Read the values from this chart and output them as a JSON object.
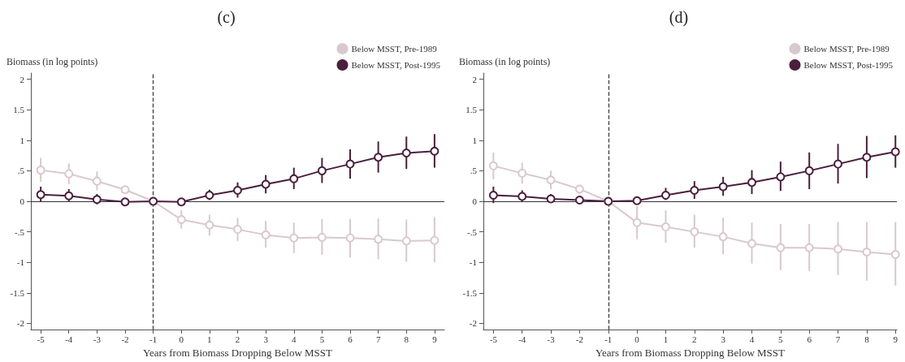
{
  "chart_data": [
    {
      "type": "line",
      "title": "(c)",
      "xlabel": "Years from Biomass Dropping Below MSST",
      "ylabel": "Biomass (in log points)",
      "x": [
        -5,
        -4,
        -3,
        -2,
        -1,
        0,
        1,
        2,
        3,
        4,
        5,
        6,
        7,
        8,
        9
      ],
      "series": [
        {
          "name": "Below MSST, Pre-1989",
          "color": "#d9c8cf",
          "values": [
            0.51,
            0.45,
            0.33,
            0.19,
            0,
            -0.3,
            -0.39,
            -0.46,
            -0.55,
            -0.6,
            -0.59,
            -0.6,
            -0.62,
            -0.65,
            -0.64
          ],
          "errors": [
            [
              0.32,
              0.71
            ],
            [
              0.28,
              0.62
            ],
            [
              0.18,
              0.49
            ],
            [
              0.16,
              0.22
            ],
            null,
            [
              -0.45,
              -0.15
            ],
            [
              -0.56,
              -0.22
            ],
            [
              -0.65,
              -0.27
            ],
            [
              -0.76,
              -0.32
            ],
            [
              -0.85,
              -0.35
            ],
            [
              -0.88,
              -0.29
            ],
            [
              -0.92,
              -0.29
            ],
            [
              -0.95,
              -0.28
            ],
            [
              -0.99,
              -0.3
            ],
            [
              -1.0,
              -0.26
            ]
          ]
        },
        {
          "name": "Below MSST, Post-1995",
          "color": "#4a1f3d",
          "values": [
            0.11,
            0.09,
            0.03,
            -0.01,
            0,
            -0.01,
            0.1,
            0.18,
            0.28,
            0.37,
            0.5,
            0.61,
            0.72,
            0.79,
            0.82
          ],
          "errors": [
            [
              0,
              0.24
            ],
            [
              0,
              0.2
            ],
            [
              -0.05,
              0.12
            ],
            null,
            null,
            null,
            [
              0.02,
              0.19
            ],
            [
              0.06,
              0.31
            ],
            [
              0.13,
              0.43
            ],
            [
              0.2,
              0.55
            ],
            [
              0.3,
              0.71
            ],
            [
              0.37,
              0.85
            ],
            [
              0.47,
              0.98
            ],
            [
              0.53,
              1.06
            ],
            [
              0.55,
              1.1
            ]
          ]
        }
      ],
      "xlim": [
        -5.35,
        9.35
      ],
      "xticks": [
        -5,
        -4,
        -3,
        -2,
        -1,
        0,
        1,
        2,
        3,
        4,
        5,
        6,
        7,
        8,
        9
      ],
      "ylim": [
        -2.1,
        2.1
      ],
      "yticks": [
        {
          "value": -2,
          "label": "-2"
        },
        {
          "value": -1.5,
          "label": "-1.5"
        },
        {
          "value": -1,
          "label": "-1"
        },
        {
          "value": -0.5,
          "label": "-.5"
        },
        {
          "value": 0,
          "label": "0"
        },
        {
          "value": 0.5,
          "label": ".5"
        },
        {
          "value": 1,
          "label": "1"
        },
        {
          "value": 1.5,
          "label": "1.5"
        },
        {
          "value": 2,
          "label": "2"
        }
      ],
      "ref_lines": [
        {
          "axis": "x",
          "value": -1,
          "color": "#333333",
          "line_style": "dashed"
        },
        {
          "axis": "y",
          "value": 0,
          "color": "#333333",
          "line_style": "solid"
        }
      ],
      "legend": "top right",
      "marker": "circle",
      "line_style": "solid",
      "grid": false
    },
    {
      "type": "line",
      "title": "(d)",
      "xlabel": "Years from Biomass Dropping Below MSST",
      "ylabel": "Biomass (in log points)",
      "x": [
        -5,
        -4,
        -3,
        -2,
        -1,
        0,
        1,
        2,
        3,
        4,
        5,
        6,
        7,
        8,
        9
      ],
      "series": [
        {
          "name": "Below MSST, Pre-1989",
          "color": "#d9c8cf",
          "values": [
            0.58,
            0.46,
            0.35,
            0.2,
            0,
            -0.35,
            -0.42,
            -0.5,
            -0.58,
            -0.69,
            -0.76,
            -0.76,
            -0.78,
            -0.83,
            -0.87
          ],
          "errors": [
            [
              0.36,
              0.8
            ],
            [
              0.29,
              0.63
            ],
            [
              0.2,
              0.5
            ],
            [
              0.12,
              0.27
            ],
            null,
            [
              -0.62,
              -0.08
            ],
            [
              -0.68,
              -0.15
            ],
            [
              -0.76,
              -0.22
            ],
            [
              -0.87,
              -0.27
            ],
            [
              -1.02,
              -0.35
            ],
            [
              -1.13,
              -0.37
            ],
            [
              -1.14,
              -0.37
            ],
            [
              -1.21,
              -0.34
            ],
            [
              -1.3,
              -0.34
            ],
            [
              -1.38,
              -0.34
            ]
          ]
        },
        {
          "name": "Below MSST, Post-1995",
          "color": "#4a1f3d",
          "values": [
            0.1,
            0.08,
            0.04,
            0.02,
            0,
            0.01,
            0.1,
            0.18,
            0.24,
            0.31,
            0.4,
            0.5,
            0.61,
            0.72,
            0.81
          ],
          "errors": [
            [
              -0.03,
              0.24
            ],
            [
              0,
              0.18
            ],
            [
              -0.02,
              0.12
            ],
            null,
            null,
            null,
            [
              0.02,
              0.22
            ],
            [
              0.04,
              0.33
            ],
            [
              0.09,
              0.4
            ],
            [
              0.12,
              0.51
            ],
            [
              0.17,
              0.65
            ],
            [
              0.2,
              0.8
            ],
            [
              0.29,
              0.94
            ],
            [
              0.38,
              1.07
            ],
            [
              0.55,
              1.08
            ]
          ]
        }
      ],
      "xlim": [
        -5.35,
        9.05
      ],
      "xticks": [
        -5,
        -4,
        -3,
        -2,
        -1,
        0,
        1,
        2,
        3,
        4,
        5,
        6,
        7,
        8,
        9
      ],
      "ylim": [
        -2.1,
        2.1
      ],
      "yticks": [
        {
          "value": -2,
          "label": "-2"
        },
        {
          "value": -1.5,
          "label": "-1.5"
        },
        {
          "value": -1,
          "label": "-1"
        },
        {
          "value": -0.5,
          "label": "-.5"
        },
        {
          "value": 0,
          "label": "0"
        },
        {
          "value": 0.5,
          "label": ".5"
        },
        {
          "value": 1,
          "label": "1"
        },
        {
          "value": 1.5,
          "label": "1.5"
        },
        {
          "value": 2,
          "label": "2"
        }
      ],
      "ref_lines": [
        {
          "axis": "x",
          "value": -1,
          "color": "#333333",
          "line_style": "dashed"
        },
        {
          "axis": "y",
          "value": 0,
          "color": "#333333",
          "line_style": "solid"
        }
      ],
      "legend": "top right",
      "marker": "circle",
      "line_style": "solid",
      "grid": false
    }
  ]
}
